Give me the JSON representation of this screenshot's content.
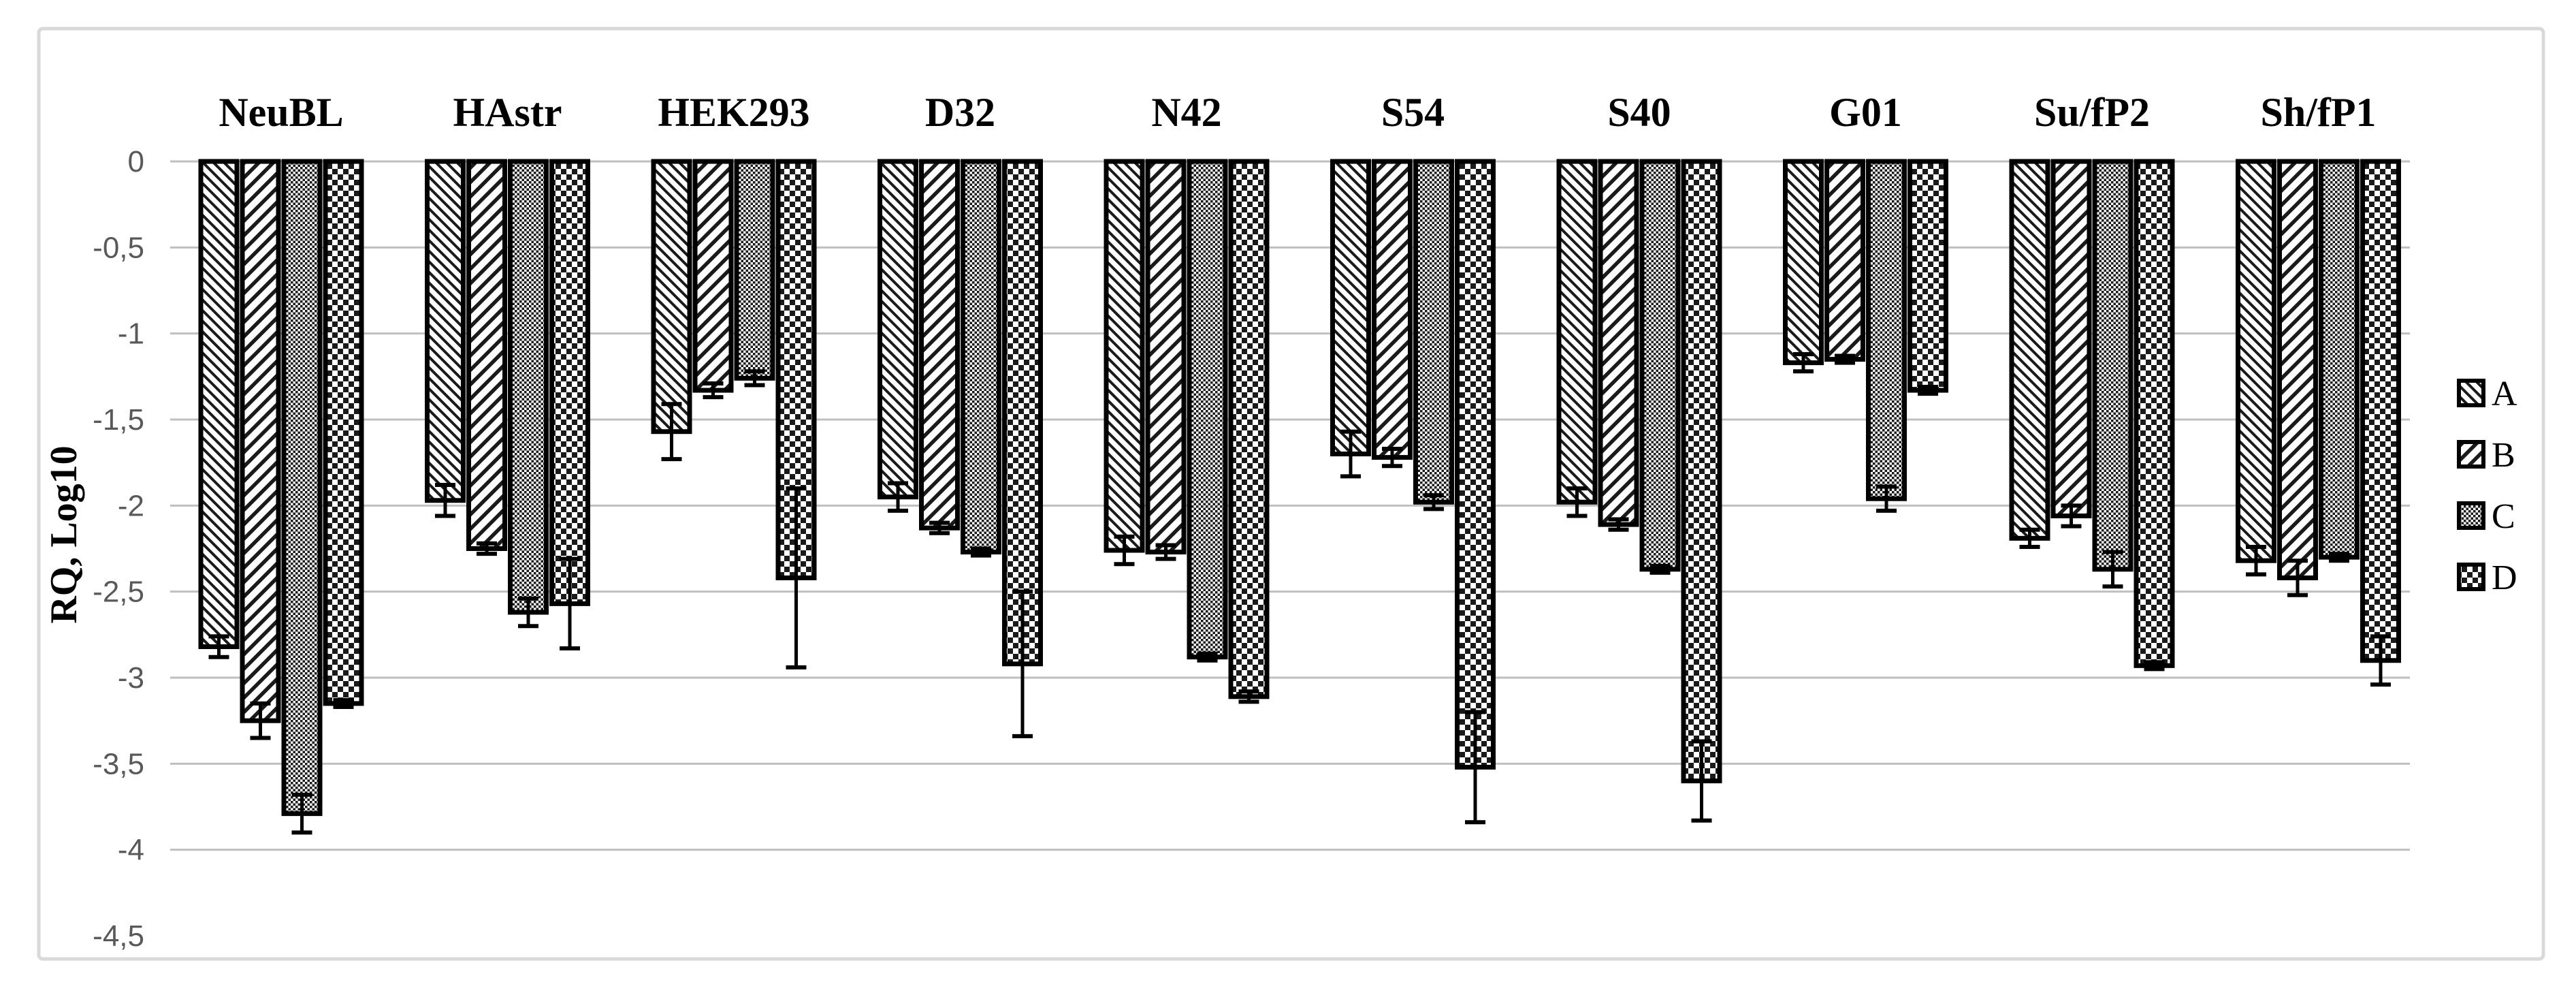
{
  "chart_data": {
    "type": "bar",
    "title": "",
    "ylabel": "RQ, Log10",
    "xlabel": "",
    "ylim": [
      -4.5,
      0
    ],
    "grid": true,
    "legend_position": "right",
    "decimal_separator": ",",
    "categories": [
      "NeuBL",
      "HAstr",
      "HEK293",
      "D32",
      "N42",
      "S54",
      "S40",
      "G01",
      "Su/fP2",
      "Sh/fP1"
    ],
    "y_ticks": [
      {
        "label": "0",
        "value": 0,
        "gridline": true
      },
      {
        "label": "-0,5",
        "value": -0.5,
        "gridline": true
      },
      {
        "label": "-1",
        "value": -1,
        "gridline": true
      },
      {
        "label": "-1,5",
        "value": -1.5,
        "gridline": true
      },
      {
        "label": "-2",
        "value": -2,
        "gridline": true
      },
      {
        "label": "-2,5",
        "value": -2.5,
        "gridline": true
      },
      {
        "label": "-3",
        "value": -3,
        "gridline": true
      },
      {
        "label": "-3,5",
        "value": -3.5,
        "gridline": true
      },
      {
        "label": "-4",
        "value": -4,
        "gridline": true
      },
      {
        "label": "-4,5",
        "value": -4.5,
        "gridline": false
      }
    ],
    "series": [
      {
        "name": "A",
        "pattern": "diagonal-down-hatch",
        "values": [
          -2.82,
          -1.97,
          -1.57,
          -1.95,
          -2.26,
          -1.7,
          -1.98,
          -1.17,
          -2.19,
          -2.32
        ],
        "errors": [
          0.06,
          0.09,
          0.16,
          0.08,
          0.08,
          0.13,
          0.08,
          0.05,
          0.05,
          0.08
        ]
      },
      {
        "name": "B",
        "pattern": "diagonal-up-hatch",
        "values": [
          -3.25,
          -2.25,
          -1.33,
          -2.13,
          -2.27,
          -1.72,
          -2.11,
          -1.15,
          -2.06,
          -2.42
        ],
        "errors": [
          0.1,
          0.03,
          0.04,
          0.03,
          0.04,
          0.05,
          0.03,
          0.02,
          0.06,
          0.1
        ]
      },
      {
        "name": "C",
        "pattern": "fine-checker",
        "values": [
          -3.79,
          -2.62,
          -1.26,
          -2.27,
          -2.88,
          -1.98,
          -2.37,
          -1.96,
          -2.37,
          -2.3
        ],
        "errors": [
          0.11,
          0.08,
          0.04,
          0.02,
          0.02,
          0.04,
          0.02,
          0.07,
          0.1,
          0.02
        ]
      },
      {
        "name": "D",
        "pattern": "coarse-checker",
        "values": [
          -3.15,
          -2.57,
          -2.42,
          -2.92,
          -3.11,
          -3.52,
          -3.6,
          -1.33,
          -2.93,
          -2.9
        ],
        "errors": [
          0.02,
          0.26,
          0.52,
          0.42,
          0.03,
          0.32,
          0.23,
          0.02,
          0.02,
          0.14
        ]
      }
    ],
    "colors": {
      "bar_pattern": "#1a1a1a",
      "bar_outline": "#000000",
      "gridline": "#bfbfbf",
      "tick_label": "#595959",
      "axis_title": "#000000",
      "category_label": "#000000",
      "frame_border": "#d9d9d9",
      "background": "#ffffff"
    }
  },
  "legend": {
    "items": [
      {
        "label": "A"
      },
      {
        "label": "B"
      },
      {
        "label": "C"
      },
      {
        "label": "D"
      }
    ]
  }
}
